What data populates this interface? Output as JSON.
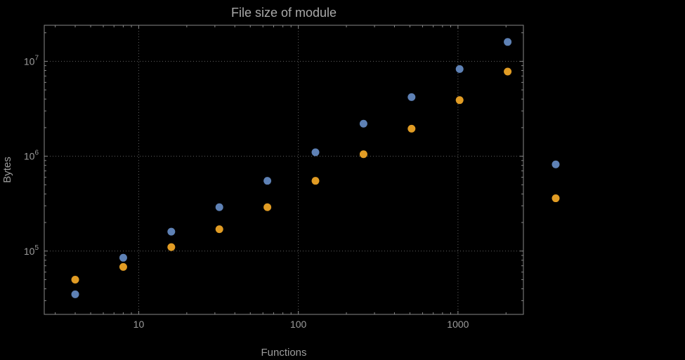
{
  "figure": {
    "background": "#000000",
    "frame_color": "#878787",
    "grid_color": "#616161",
    "tick_label_color": "#9c9c9c",
    "label_color": "#9c9c9c",
    "title_color": "#a9a9a9"
  },
  "chart_data": {
    "type": "scatter",
    "title": "File size of module",
    "xlabel": "Functions",
    "ylabel": "Bytes",
    "x_scale": "log",
    "y_scale": "log",
    "grid": "dotted-major",
    "legend": "none",
    "xlim": [
      2.56,
      2570
    ],
    "ylim": [
      21500,
      24000000
    ],
    "x_major_ticks": [
      10,
      100,
      1000
    ],
    "x_tick_labels": [
      "10",
      "100",
      "1000"
    ],
    "y_major_ticks": [
      100000,
      1000000,
      10000000
    ],
    "y_tick_labels": [
      {
        "base": "10",
        "exp": "5"
      },
      {
        "base": "10",
        "exp": "6"
      },
      {
        "base": "10",
        "exp": "7"
      }
    ],
    "point_radius": 5.5,
    "x": [
      4,
      8,
      16,
      32,
      64,
      128,
      256,
      512,
      1024,
      2048,
      4096
    ],
    "series": [
      {
        "name": "blue",
        "color": "#5e81b5",
        "values": [
          35000,
          85000,
          160000,
          290000,
          550000,
          1100000,
          2200000,
          4200000,
          8300000,
          16000000,
          820000
        ]
      },
      {
        "name": "orange",
        "color": "#e19c24",
        "values": [
          50000,
          68000,
          110000,
          170000,
          290000,
          550000,
          1050000,
          1950000,
          3900000,
          7800000,
          360000
        ]
      }
    ]
  }
}
